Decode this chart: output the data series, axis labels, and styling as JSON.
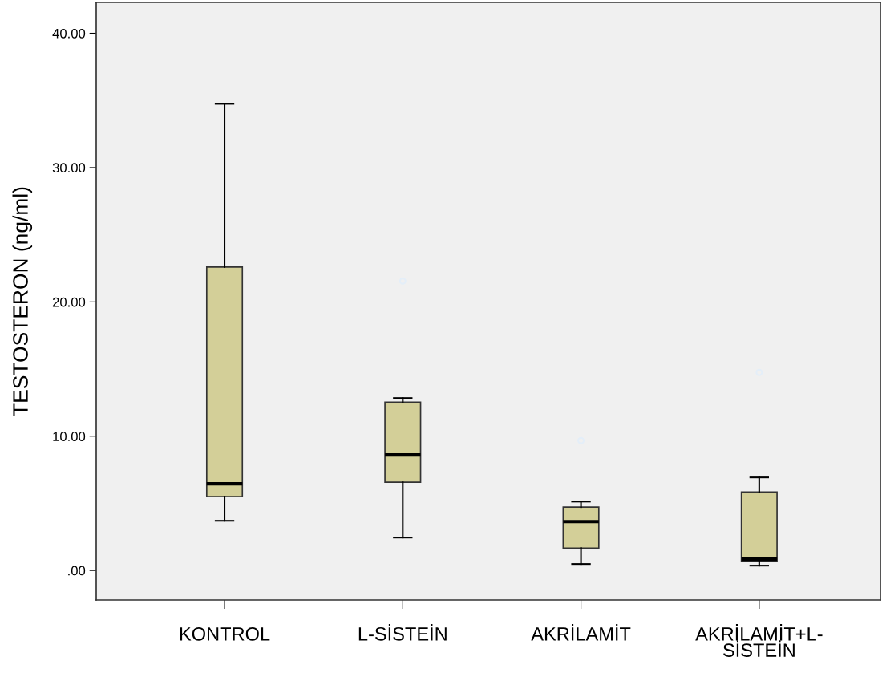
{
  "chart_data": {
    "type": "box",
    "ylabel": "TESTOSTERON (ng/ml)",
    "categories": [
      "KONTROL",
      "L-SİSTEİN",
      "AKRİLAMİT",
      "AKRİLAMİT+L-\nSİSTEİN"
    ],
    "color": "#d3cf98",
    "boxes": [
      {
        "low": 3.7,
        "q1": 5.5,
        "median": 6.45,
        "q3": 22.6,
        "high": 34.75
      },
      {
        "low": 2.45,
        "q1": 6.57,
        "median": 8.6,
        "q3": 12.54,
        "high": 12.84,
        "outliers": [
          21.55
        ]
      },
      {
        "low": 0.48,
        "q1": 1.67,
        "median": 3.64,
        "q3": 4.72,
        "high": 5.13,
        "outliers": [
          9.67
        ]
      },
      {
        "low": 0.36,
        "q1": 0.72,
        "median": 0.84,
        "q3": 5.85,
        "high": 6.93,
        "outliers": [
          14.75
        ]
      }
    ],
    "ylim": [
      -2.2,
      42.3
    ],
    "yticks": [
      {
        "value": 0,
        "label": ".00"
      },
      {
        "value": 10,
        "label": "10.00"
      },
      {
        "value": 20,
        "label": "20.00"
      },
      {
        "value": 30,
        "label": "30.00"
      },
      {
        "value": 40,
        "label": "40.00"
      }
    ],
    "grid": false,
    "legend": false
  }
}
